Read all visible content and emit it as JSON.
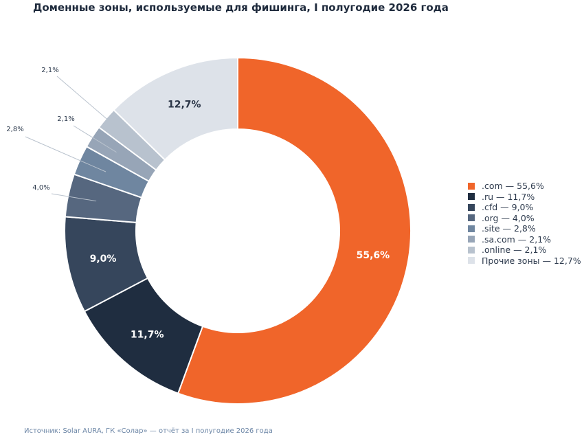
{
  "chart_data": {
    "type": "pie",
    "donut": true,
    "title": "Доменные зоны, используемые для фишинга, I полугодие 2026 года",
    "slices": [
      {
        "label": ".com",
        "value": 55.6,
        "display": "55,6%",
        "legend": ".com — 55,6%",
        "color": "#f0652a",
        "label_color": "#ffffff"
      },
      {
        "label": ".ru",
        "value": 11.7,
        "display": "11,7%",
        "legend": ".ru — 11,7%",
        "color": "#1f2d40",
        "label_color": "#ffffff"
      },
      {
        "label": ".cfd",
        "value": 9.0,
        "display": "9,0%",
        "legend": ".cfd — 9,0%",
        "color": "#36465c",
        "label_color": "#ffffff"
      },
      {
        "label": ".org",
        "value": 4.0,
        "display": "4,0%",
        "legend": ".org — 4,0%",
        "color": "#56677f"
      },
      {
        "label": ".site",
        "value": 2.8,
        "display": "2,8%",
        "legend": ".site — 2,8%",
        "color": "#6f86a0"
      },
      {
        "label": ".sa.com",
        "value": 2.1,
        "display": "2,1%",
        "legend": ".sa.com — 2,1%",
        "color": "#97a5b7"
      },
      {
        "label": ".online",
        "value": 2.1,
        "display": "2,1%",
        "legend": ".online — 2,1%",
        "color": "#b8c2ce"
      },
      {
        "label": "Прочие зоны",
        "value": 12.7,
        "display": "12,7%",
        "legend": "Прочие зоны — 12,7%",
        "color": "#dde2e9",
        "label_color": "#2a3547"
      }
    ],
    "legend_position": "right"
  },
  "source": "Источник: Solar AURA, ГК «Солар» — отчёт за I полугодие 2026 года"
}
